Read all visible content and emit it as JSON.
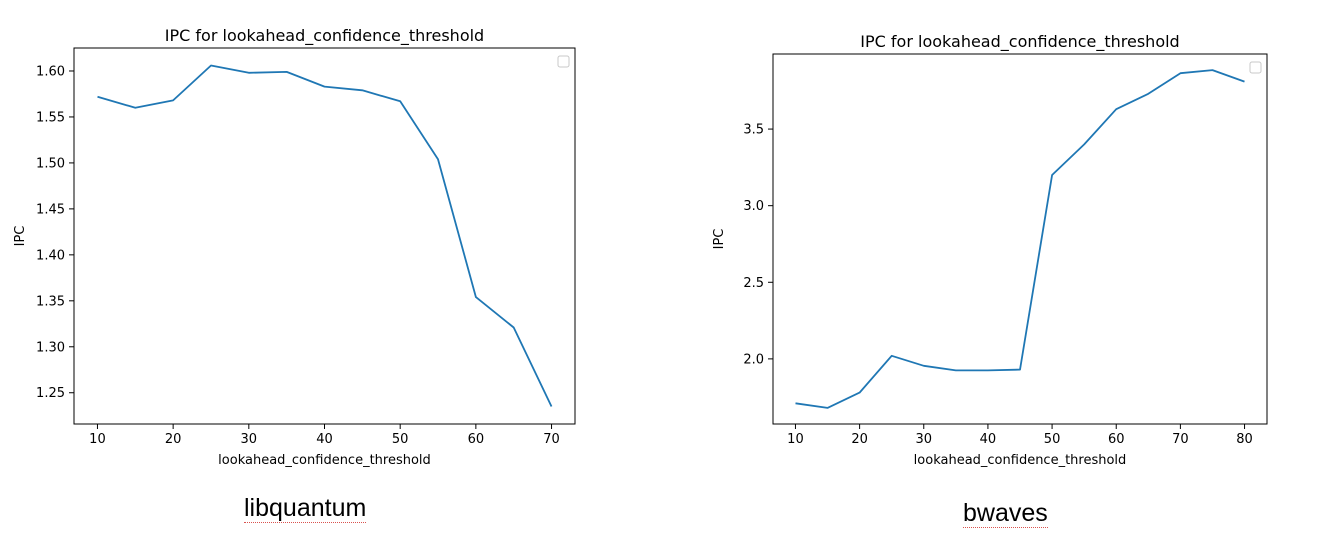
{
  "chart_data": [
    {
      "type": "line",
      "title": "IPC for lookahead_confidence_threshold",
      "xlabel": "lookahead_confidence_threshold",
      "ylabel": "IPC",
      "x": [
        10,
        15,
        20,
        25,
        30,
        35,
        40,
        45,
        50,
        55,
        60,
        65,
        70
      ],
      "series": [
        {
          "values": [
            1.572,
            1.56,
            1.568,
            1.606,
            1.598,
            1.599,
            1.583,
            1.579,
            1.567,
            1.504,
            1.354,
            1.321,
            1.235
          ]
        }
      ],
      "xticks": [
        "10",
        "20",
        "30",
        "40",
        "50",
        "60",
        "70"
      ],
      "yticks": [
        "1.25",
        "1.30",
        "1.35",
        "1.40",
        "1.45",
        "1.50",
        "1.55",
        "1.60"
      ],
      "xlim": [
        6.9,
        73.1
      ],
      "ylim": [
        1.216,
        1.625
      ],
      "color": "#1f77b4",
      "legend": "upper right (empty)"
    },
    {
      "type": "line",
      "title": "IPC for lookahead_confidence_threshold",
      "xlabel": "lookahead_confidence_threshold",
      "ylabel": "IPC",
      "x": [
        10,
        15,
        20,
        25,
        30,
        35,
        40,
        45,
        50,
        55,
        60,
        65,
        70,
        75,
        80
      ],
      "series": [
        {
          "values": [
            1.71,
            1.68,
            1.78,
            2.02,
            1.955,
            1.925,
            1.925,
            1.93,
            3.2,
            3.4,
            3.63,
            3.73,
            3.865,
            3.885,
            3.81
          ]
        }
      ],
      "xticks": [
        "10",
        "20",
        "30",
        "40",
        "50",
        "60",
        "70",
        "80"
      ],
      "yticks": [
        "2.0",
        "2.5",
        "3.0",
        "3.5"
      ],
      "xlim": [
        6.5,
        83.5
      ],
      "ylim": [
        1.575,
        3.99
      ],
      "color": "#1f77b4",
      "legend": "upper right (empty)"
    }
  ],
  "captions": {
    "left": "libquantum",
    "right": "bwaves"
  }
}
